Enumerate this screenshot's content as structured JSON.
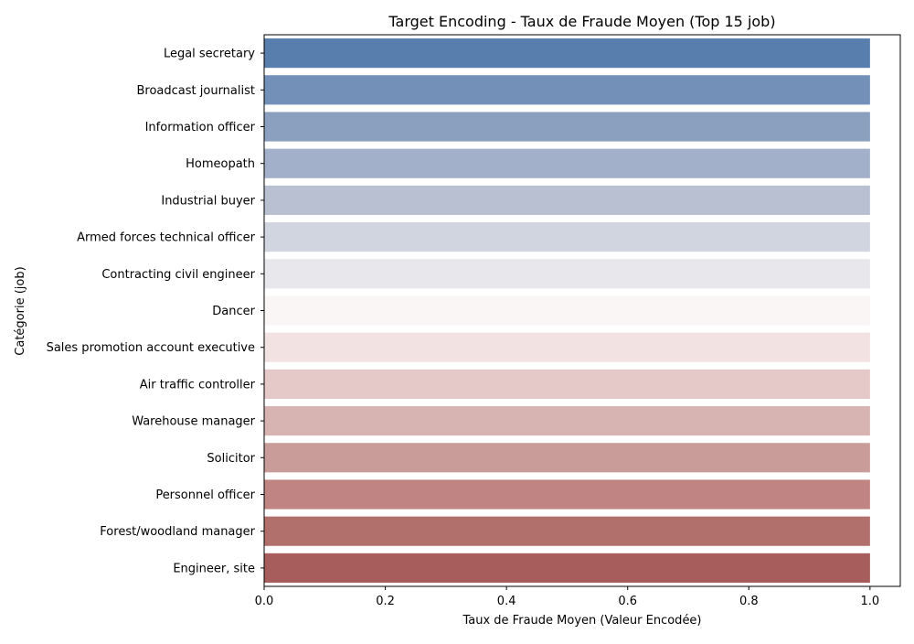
{
  "chart_data": {
    "type": "bar",
    "orientation": "horizontal",
    "title": "Target Encoding - Taux de Fraude Moyen (Top 15 job)",
    "xlabel": "Taux de Fraude Moyen (Valeur Encodée)",
    "ylabel": "Catégorie (job)",
    "xlim": [
      0,
      1.05
    ],
    "xticks": [
      "0.0",
      "0.2",
      "0.4",
      "0.6",
      "0.8",
      "1.0"
    ],
    "xtick_values": [
      0,
      0.2,
      0.4,
      0.6,
      0.8,
      1.0
    ],
    "grid": false,
    "categories": [
      "Legal secretary",
      "Broadcast journalist",
      "Information officer",
      "Homeopath",
      "Industrial buyer",
      "Armed forces technical officer",
      "Contracting civil engineer",
      "Dancer",
      "Sales promotion account executive",
      "Air traffic controller",
      "Warehouse manager",
      "Solicitor",
      "Personnel officer",
      "Forest/woodland manager",
      "Engineer, site"
    ],
    "values": [
      1.0,
      1.0,
      1.0,
      1.0,
      1.0,
      1.0,
      1.0,
      1.0,
      1.0,
      1.0,
      1.0,
      1.0,
      1.0,
      1.0,
      1.0
    ],
    "colors": [
      "#587eae",
      "#7390b8",
      "#8b9fbf",
      "#a3b0c9",
      "#b9c0d1",
      "#d0d5df",
      "#e8e7ec",
      "#f9f6f5",
      "#f2e2e2",
      "#e5c8c8",
      "#d7b3b1",
      "#ca9c99",
      "#c08583",
      "#b2706d",
      "#a65d5b"
    ]
  }
}
